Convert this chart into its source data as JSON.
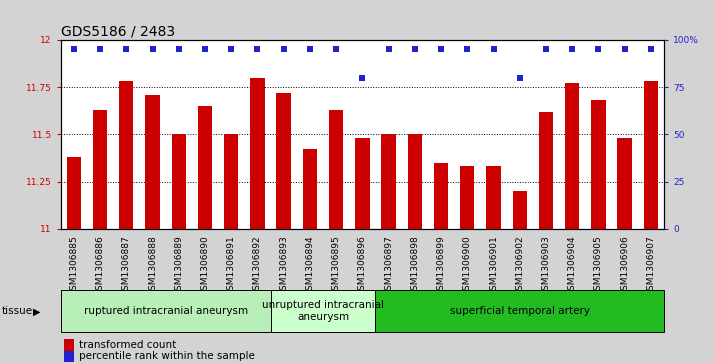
{
  "title": "GDS5186 / 2483",
  "categories": [
    "GSM1306885",
    "GSM1306886",
    "GSM1306887",
    "GSM1306888",
    "GSM1306889",
    "GSM1306890",
    "GSM1306891",
    "GSM1306892",
    "GSM1306893",
    "GSM1306894",
    "GSM1306895",
    "GSM1306896",
    "GSM1306897",
    "GSM1306898",
    "GSM1306899",
    "GSM1306900",
    "GSM1306901",
    "GSM1306902",
    "GSM1306903",
    "GSM1306904",
    "GSM1306905",
    "GSM1306906",
    "GSM1306907"
  ],
  "bar_values": [
    11.38,
    11.63,
    11.78,
    11.71,
    11.5,
    11.65,
    11.5,
    11.8,
    11.72,
    11.42,
    11.63,
    11.48,
    11.5,
    11.5,
    11.35,
    11.33,
    11.33,
    11.2,
    11.62,
    11.77,
    11.68,
    11.48,
    11.78
  ],
  "percentile_values": [
    95,
    95,
    95,
    95,
    95,
    95,
    95,
    95,
    95,
    95,
    95,
    80,
    95,
    95,
    95,
    95,
    95,
    80,
    95,
    95,
    95,
    95,
    95
  ],
  "bar_color": "#cc0000",
  "percentile_color": "#2222cc",
  "ylim_left": [
    11.0,
    12.0
  ],
  "ylim_right": [
    0,
    100
  ],
  "yticks_left": [
    11.0,
    11.25,
    11.5,
    11.75,
    12.0
  ],
  "ytick_labels_left": [
    "11",
    "11.25",
    "11.5",
    "11.75",
    "12"
  ],
  "yticks_right": [
    0,
    25,
    50,
    75,
    100
  ],
  "ytick_labels_right": [
    "0",
    "25",
    "50",
    "75",
    "100%"
  ],
  "tissue_groups": [
    {
      "label": "ruptured intracranial aneurysm",
      "start": 0,
      "end": 8,
      "color": "#b8eeb8"
    },
    {
      "label": "unruptured intracranial\naneurysm",
      "start": 8,
      "end": 12,
      "color": "#ccffcc"
    },
    {
      "label": "superficial temporal artery",
      "start": 12,
      "end": 23,
      "color": "#22bb22"
    }
  ],
  "tissue_label": "tissue",
  "legend_bar_label": "transformed count",
  "legend_dot_label": "percentile rank within the sample",
  "bg_color": "#d3d3d3",
  "plot_bg_color": "#ffffff",
  "title_fontsize": 10,
  "tick_fontsize": 6.5,
  "tissue_fontsize": 7.5,
  "legend_fontsize": 7.5
}
